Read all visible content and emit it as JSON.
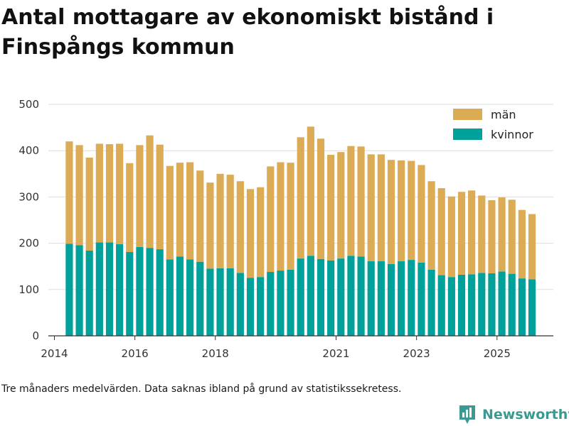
{
  "title": "Antal mottagare av ekonomiskt bistånd i Finspångs kommun",
  "footnote": "Tre månaders medelvärden. Data saknas ibland på grund av statistikssekretess.",
  "brand": {
    "name": "Newsworthy"
  },
  "colors": {
    "man": "#dcab56",
    "kvinnor": "#00a19a",
    "grid": "#dddddd",
    "axis": "#333333"
  },
  "chart_data": {
    "type": "bar",
    "stacked": true,
    "title": "Antal mottagare av ekonomiskt bistånd i Finspångs kommun",
    "xlabel": "",
    "ylabel": "",
    "ylim": [
      0,
      500
    ],
    "yticks": [
      0,
      100,
      200,
      300,
      400,
      500
    ],
    "xlim": [
      2013.85,
      2026.4
    ],
    "xticks": [
      {
        "value": 2014,
        "label": "2014"
      },
      {
        "value": 2016,
        "label": "2016"
      },
      {
        "value": 2018,
        "label": "2018"
      },
      {
        "value": 2021,
        "label": "2021"
      },
      {
        "value": 2023,
        "label": "2023"
      },
      {
        "value": 2025,
        "label": "2025"
      }
    ],
    "legend": {
      "position": "top-right",
      "entries": [
        "män",
        "kvinnor"
      ]
    },
    "periods": [
      2014.37,
      2014.62,
      2014.87,
      2015.12,
      2015.37,
      2015.62,
      2015.87,
      2016.12,
      2016.37,
      2016.62,
      2016.87,
      2017.12,
      2017.37,
      2017.62,
      2017.87,
      2018.12,
      2018.37,
      2018.62,
      2018.87,
      2019.12,
      2019.37,
      2019.62,
      2019.87,
      2020.12,
      2020.37,
      2020.62,
      2020.87,
      2021.12,
      2021.37,
      2021.62,
      2021.87,
      2022.12,
      2022.37,
      2022.62,
      2022.87,
      2023.12,
      2023.37,
      2023.62,
      2023.87,
      2024.12,
      2024.37,
      2024.62,
      2024.87,
      2025.12,
      2025.37,
      2025.62,
      2025.87
    ],
    "series": [
      {
        "name": "kvinnor",
        "values": [
          199,
          196,
          184,
          202,
          202,
          198,
          181,
          192,
          190,
          187,
          165,
          171,
          165,
          160,
          145,
          146,
          146,
          136,
          125,
          127,
          138,
          141,
          143,
          167,
          173,
          166,
          163,
          167,
          173,
          171,
          161,
          161,
          155,
          161,
          164,
          158,
          143,
          131,
          127,
          132,
          133,
          136,
          135,
          139,
          134,
          124,
          122
        ]
      },
      {
        "name": "män",
        "values": [
          221,
          216,
          201,
          213,
          212,
          217,
          192,
          220,
          243,
          226,
          202,
          203,
          210,
          197,
          186,
          204,
          202,
          198,
          192,
          194,
          228,
          234,
          231,
          262,
          279,
          260,
          228,
          230,
          237,
          238,
          231,
          231,
          225,
          218,
          214,
          211,
          191,
          188,
          174,
          179,
          181,
          167,
          158,
          160,
          160,
          148,
          141
        ]
      }
    ]
  }
}
